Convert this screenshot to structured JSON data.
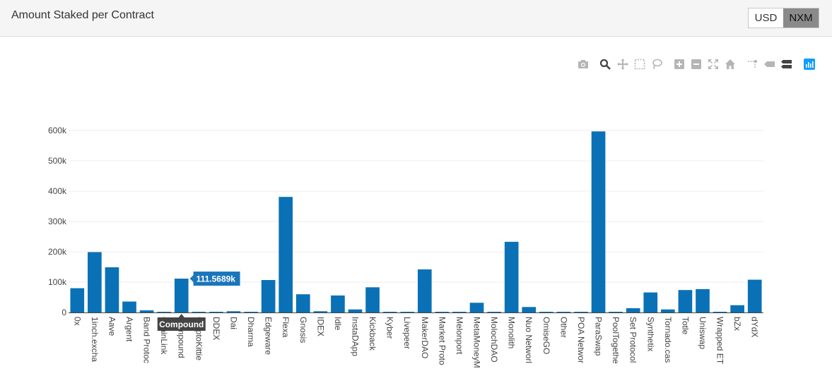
{
  "header": {
    "title": "Amount Staked per Contract",
    "currency_options": [
      "USD",
      "NXM"
    ],
    "selected_currency": "NXM"
  },
  "modebar": {
    "buttons": [
      {
        "name": "camera-icon",
        "label": "Download plot as png"
      },
      {
        "name": "zoom-icon",
        "label": "Zoom"
      },
      {
        "name": "pan-icon",
        "label": "Pan"
      },
      {
        "name": "box-select-icon",
        "label": "Box Select"
      },
      {
        "name": "lasso-select-icon",
        "label": "Lasso Select"
      },
      {
        "name": "zoom-in-icon",
        "label": "Zoom in"
      },
      {
        "name": "zoom-out-icon",
        "label": "Zoom out"
      },
      {
        "name": "autoscale-icon",
        "label": "Autoscale"
      },
      {
        "name": "reset-axes-icon",
        "label": "Reset axes"
      },
      {
        "name": "spike-lines-icon",
        "label": "Toggle Spike Lines"
      },
      {
        "name": "hover-closest-icon",
        "label": "Show closest data on hover"
      },
      {
        "name": "hover-compare-icon",
        "label": "Compare data on hover"
      },
      {
        "name": "plotly-logo-icon",
        "label": "Produced with Plotly"
      }
    ]
  },
  "colors": {
    "bar": "#1f77b4",
    "bar_fill": "#0a71b6",
    "grid": "#eeeeee",
    "hover_bg": "#1a76bb",
    "axis_hover_bg": "#444444"
  },
  "chart_data": {
    "type": "bar",
    "title": "Amount Staked per Contract",
    "xlabel": "",
    "ylabel": "",
    "ylim": [
      0,
      620000
    ],
    "yticks": [
      0,
      100000,
      200000,
      300000,
      400000,
      500000,
      600000
    ],
    "ytick_labels": [
      "0",
      "100k",
      "200k",
      "300k",
      "400k",
      "500k",
      "600k"
    ],
    "categories": [
      "0x",
      "1inch.exchange",
      "Aave",
      "Argent",
      "Band Protocol",
      "ChainLink",
      "Compound",
      "CryptoKitties",
      "DDEX",
      "Dai",
      "Dharma",
      "Edgeware",
      "Flexa",
      "Gnosis",
      "IDEX",
      "Idle",
      "InstaDApp",
      "Kickback",
      "Kyber",
      "Livepeer",
      "MakerDAO",
      "Market Protocol",
      "Melonport",
      "MetaMoneyMarket",
      "MolochDAO",
      "Monolith",
      "Nuo Network",
      "OmiseGO",
      "Other",
      "POA Network",
      "ParaSwap",
      "PoolTogether",
      "Set Protocol",
      "Synthetix",
      "Tornado.cash",
      "Totle",
      "Uniswap",
      "Wrapped ETH",
      "bZx",
      "dYdX"
    ],
    "category_labels": [
      "0x",
      "1inch.excha",
      "Aave",
      "Argent",
      "Band Protoc",
      "ChainLink",
      "Compound",
      "CryptoKittie",
      "DDEX",
      "Dai",
      "Dharma",
      "Edgeware",
      "Flexa",
      "Gnosis",
      "IDEX",
      "Idle",
      "InstaDApp",
      "Kickback",
      "Kyber",
      "Livepeer",
      "MakerDAO",
      "Market Proto",
      "Melonport",
      "MetaMoneyM",
      "MolochDAO",
      "Monolith",
      "Nuo Networl",
      "OmiseGO",
      "Other",
      "POA Networ",
      "ParaSwap",
      "PoolTogethe",
      "Set Protocol",
      "Synthetix",
      "Tornado.cas",
      "Totle",
      "Uniswap",
      "Wrapped ET",
      "bZx",
      "dYdX"
    ],
    "values": [
      80000,
      199000,
      149000,
      36000,
      7000,
      1500,
      111568.9,
      1500,
      1500,
      4000,
      1500,
      107000,
      381000,
      60000,
      4000,
      56000,
      10000,
      83000,
      1500,
      1500,
      142000,
      1500,
      1500,
      32000,
      1500,
      233000,
      18000,
      1500,
      1500,
      1500,
      597000,
      1500,
      14000,
      66000,
      10000,
      74000,
      77000,
      1500,
      24000,
      108000
    ],
    "hover": {
      "category": "Compound",
      "value_label": "111.5689k"
    }
  }
}
